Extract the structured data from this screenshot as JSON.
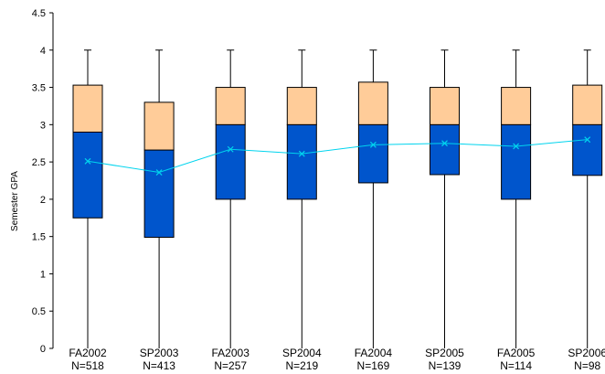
{
  "chart_data": {
    "type": "box",
    "ylabel": "Semester GPA",
    "ylim": [
      0,
      4.5
    ],
    "y_ticks": [
      "0",
      "0.5",
      "1",
      "1.5",
      "2",
      "2.5",
      "3",
      "3.5",
      "4",
      "4.5"
    ],
    "grid": false,
    "legend": "none",
    "colors": {
      "lower_box": "#0055cc",
      "upper_box": "#ffcc99",
      "mean_line": "#00d4ee",
      "axis": "#000000"
    },
    "categories": [
      {
        "term": "FA2002",
        "n": "N=518",
        "min": 0,
        "q1": 1.75,
        "median": 2.9,
        "q3": 3.53,
        "max": 4.0,
        "mean": 2.51
      },
      {
        "term": "SP2003",
        "n": "N=413",
        "min": 0,
        "q1": 1.49,
        "median": 2.66,
        "q3": 3.3,
        "max": 4.0,
        "mean": 2.36
      },
      {
        "term": "FA2003",
        "n": "N=257",
        "min": 0,
        "q1": 2.0,
        "median": 3.0,
        "q3": 3.5,
        "max": 4.0,
        "mean": 2.67
      },
      {
        "term": "SP2004",
        "n": "N=219",
        "min": 0,
        "q1": 2.0,
        "median": 3.0,
        "q3": 3.5,
        "max": 4.0,
        "mean": 2.61
      },
      {
        "term": "FA2004",
        "n": "N=169",
        "min": 0,
        "q1": 2.22,
        "median": 3.0,
        "q3": 3.57,
        "max": 4.0,
        "mean": 2.73
      },
      {
        "term": "SP2005",
        "n": "N=139",
        "min": 0,
        "q1": 2.33,
        "median": 3.0,
        "q3": 3.5,
        "max": 4.0,
        "mean": 2.75
      },
      {
        "term": "FA2005",
        "n": "N=114",
        "min": 0,
        "q1": 2.0,
        "median": 3.0,
        "q3": 3.5,
        "max": 4.0,
        "mean": 2.71
      },
      {
        "term": "SP2006",
        "n": "N=98",
        "min": 0,
        "q1": 2.32,
        "median": 3.0,
        "q3": 3.53,
        "max": 4.0,
        "mean": 2.8
      }
    ]
  }
}
